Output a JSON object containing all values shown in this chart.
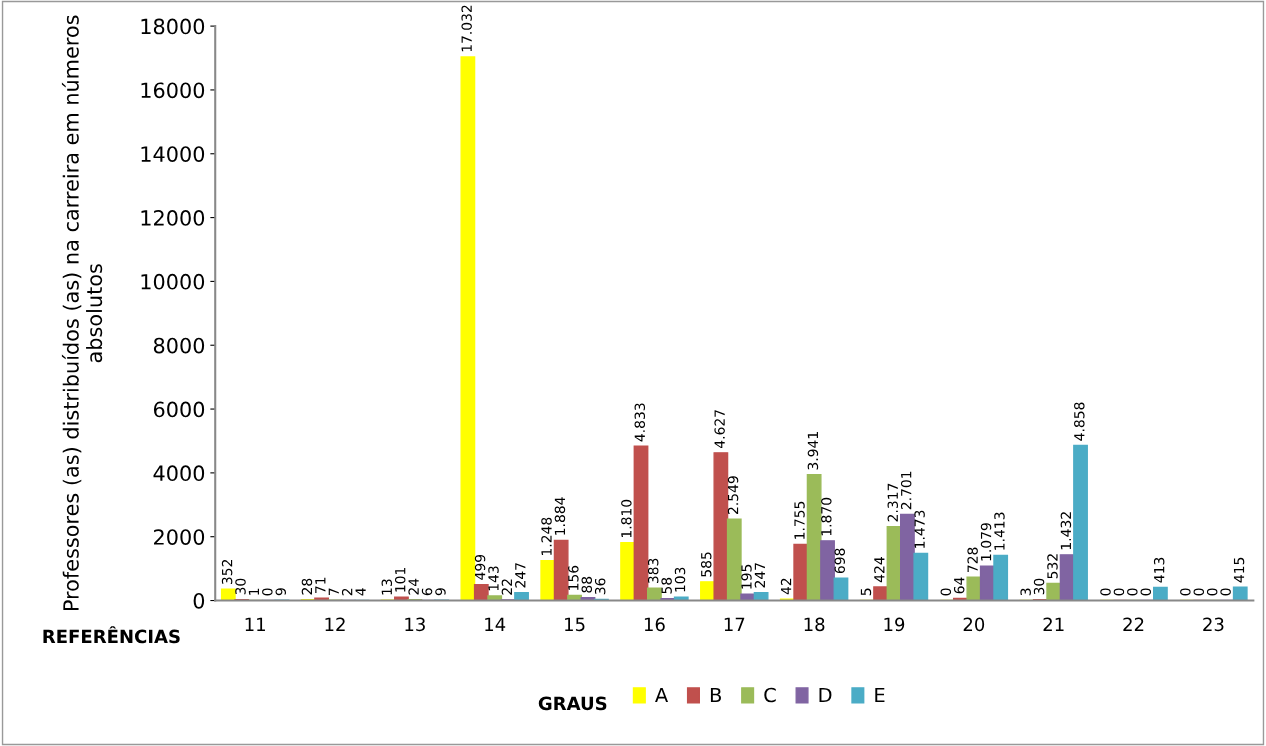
{
  "chart_data": {
    "type": "bar",
    "ylabel": "Professores (as) distribuídos (as) na carreira em números absolutos",
    "xlabel": "REFERÊNCIAS",
    "legend_title": "GRAUS",
    "categories": [
      "11",
      "12",
      "13",
      "14",
      "15",
      "16",
      "17",
      "18",
      "19",
      "20",
      "21",
      "22",
      "23"
    ],
    "series": [
      {
        "name": "A",
        "color": "#ffff00",
        "values": [
          352,
          28,
          13,
          17032,
          1248,
          1810,
          585,
          42,
          5,
          0,
          3,
          0,
          0
        ],
        "value_labels": [
          "352",
          "28",
          "13",
          "17.032",
          "1.248",
          "1.810",
          "585",
          "42",
          "5",
          "0",
          "3",
          "0",
          "0"
        ]
      },
      {
        "name": "B",
        "color": "#c0504d",
        "values": [
          30,
          71,
          101,
          499,
          1884,
          4833,
          4627,
          1755,
          424,
          64,
          30,
          0,
          0
        ],
        "value_labels": [
          "30",
          "71",
          "101",
          "499",
          "1.884",
          "4.833",
          "4.627",
          "1.755",
          "424",
          "64",
          "30",
          "0",
          "0"
        ]
      },
      {
        "name": "C",
        "color": "#9bbb59",
        "values": [
          1,
          7,
          24,
          143,
          156,
          383,
          2549,
          3941,
          2317,
          728,
          532,
          0,
          0
        ],
        "value_labels": [
          "1",
          "7",
          "24",
          "143",
          "156",
          "383",
          "2.549",
          "3.941",
          "2.317",
          "728",
          "532",
          "0",
          "0"
        ]
      },
      {
        "name": "D",
        "color": "#8064a2",
        "values": [
          0,
          2,
          6,
          22,
          88,
          58,
          195,
          1870,
          2701,
          1079,
          1432,
          0,
          0
        ],
        "value_labels": [
          "0",
          "2",
          "6",
          "22",
          "88",
          "58",
          "195",
          "1.870",
          "2.701",
          "1.079",
          "1.432",
          "0",
          "0"
        ]
      },
      {
        "name": "E",
        "color": "#4bacc6",
        "values": [
          9,
          4,
          9,
          247,
          36,
          103,
          247,
          698,
          1473,
          1413,
          4858,
          413,
          415
        ],
        "value_labels": [
          "9",
          "4",
          "9",
          "247",
          "36",
          "103",
          "247",
          "698",
          "1.473",
          "1.413",
          "4.858",
          "413",
          "415"
        ]
      }
    ],
    "ylim": [
      0,
      18000
    ],
    "yticks": [
      0,
      2000,
      4000,
      6000,
      8000,
      10000,
      12000,
      14000,
      16000,
      18000
    ],
    "grid": false,
    "legend": "bottom"
  }
}
